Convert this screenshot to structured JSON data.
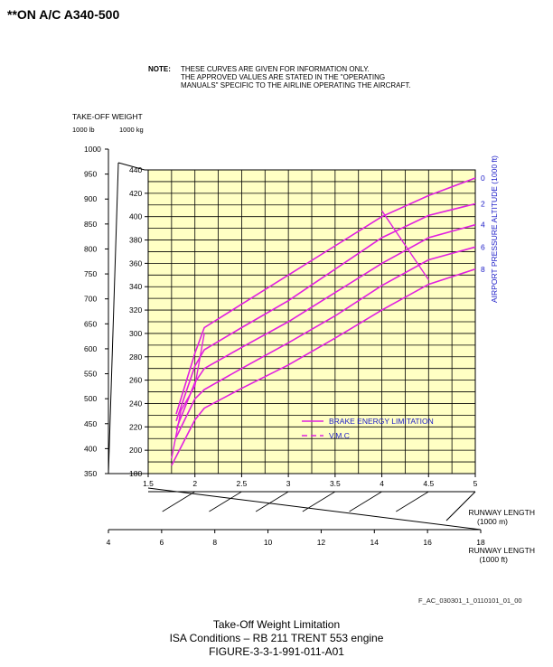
{
  "header": "**ON A/C A340-500",
  "note": {
    "label": "NOTE:",
    "lines": [
      "THESE CURVES ARE GIVEN FOR INFORMATION ONLY.",
      "THE APPROVED VALUES ARE STATED IN THE \"OPERATING",
      "MANUALS\" SPECIFIC TO THE AIRLINE OPERATING THE AIRCRAFT."
    ]
  },
  "weight_label": "TAKE-OFF WEIGHT",
  "unit_lb": "1000 lb",
  "unit_kg": "1000 kg",
  "figure_ref": "F_AC_030301_1_0110101_01_00",
  "caption": {
    "line1": "Take-Off Weight Limitation",
    "line2": "ISA Conditions – RB 211 TRENT 553 engine",
    "line3": "FIGURE-3-3-1-991-011-A01"
  },
  "chart_data": {
    "type": "line",
    "xlabel": "RUNWAY LENGTH (1000 m)",
    "xlabel_alt": "RUNWAY LENGTH (1000 ft)",
    "ylabel": "TAKE-OFF WEIGHT (1000 kg)",
    "ylabel_alt": "TAKE-OFF WEIGHT (1000 lb)",
    "param_label": "AIRPORT PRESSURE ALTITUDE (1000 ft)",
    "x_ticks_m": [
      "1.5",
      "2",
      "2.5",
      "3",
      "3.5",
      "4",
      "4.5",
      "5"
    ],
    "x_ticks_ft": [
      "4",
      "6",
      "8",
      "10",
      "12",
      "14",
      "16",
      "18"
    ],
    "y_ticks_kg": [
      "180",
      "200",
      "220",
      "240",
      "260",
      "280",
      "300",
      "320",
      "340",
      "360",
      "380",
      "400",
      "420",
      "440"
    ],
    "y_ticks_lb": [
      "350",
      "400",
      "450",
      "500",
      "550",
      "600",
      "650",
      "700",
      "750",
      "800",
      "850",
      "900",
      "950",
      "1000"
    ],
    "xlim": [
      1.5,
      5
    ],
    "ylim": [
      180,
      440
    ],
    "series": [
      {
        "name": "0",
        "points": [
          [
            1.8,
            231
          ],
          [
            2.0,
            283
          ],
          [
            2.1,
            305
          ],
          [
            2.5,
            325
          ],
          [
            3.0,
            350
          ],
          [
            3.5,
            375
          ],
          [
            4.0,
            400
          ],
          [
            4.5,
            418
          ],
          [
            5.0,
            433
          ]
        ]
      },
      {
        "name": "2",
        "points": [
          [
            1.8,
            225
          ],
          [
            2.0,
            272
          ],
          [
            2.1,
            286
          ],
          [
            2.5,
            305
          ],
          [
            3.0,
            328
          ],
          [
            3.5,
            355
          ],
          [
            4.0,
            382
          ],
          [
            4.5,
            401
          ],
          [
            5.0,
            411
          ]
        ]
      },
      {
        "name": "4",
        "points": [
          [
            1.8,
            218
          ],
          [
            2.0,
            258
          ],
          [
            2.1,
            270
          ],
          [
            2.5,
            288
          ],
          [
            3.0,
            310
          ],
          [
            3.5,
            335
          ],
          [
            4.0,
            360
          ],
          [
            4.5,
            382
          ],
          [
            5.0,
            393
          ]
        ]
      },
      {
        "name": "6",
        "points": [
          [
            1.8,
            211
          ],
          [
            2.0,
            244
          ],
          [
            2.1,
            252
          ],
          [
            2.5,
            270
          ],
          [
            3.0,
            292
          ],
          [
            3.5,
            315
          ],
          [
            4.0,
            341
          ],
          [
            4.5,
            363
          ],
          [
            5.0,
            374
          ]
        ]
      },
      {
        "name": "8",
        "points": [
          [
            1.75,
            187
          ],
          [
            2.0,
            226
          ],
          [
            2.1,
            236
          ],
          [
            2.5,
            253
          ],
          [
            3.0,
            273
          ],
          [
            3.5,
            296
          ],
          [
            4.0,
            320
          ],
          [
            4.5,
            342
          ],
          [
            5.0,
            355
          ]
        ]
      }
    ],
    "vmc_line": [
      [
        1.75,
        193
      ],
      [
        1.85,
        234
      ],
      [
        2.0,
        255
      ],
      [
        2.1,
        300
      ]
    ],
    "brake_energy_line": [
      [
        4.0,
        405
      ],
      [
        4.5,
        346
      ]
    ],
    "legend": {
      "placement": "lower-right",
      "entries": [
        "BRAKE ENERGY LIMITATION",
        "V.M.C"
      ]
    },
    "colors": {
      "curve": "#e020e0",
      "axis_text": "#2020c8",
      "grid_fill": "#ffffc4",
      "grid_line": "#000000"
    }
  }
}
